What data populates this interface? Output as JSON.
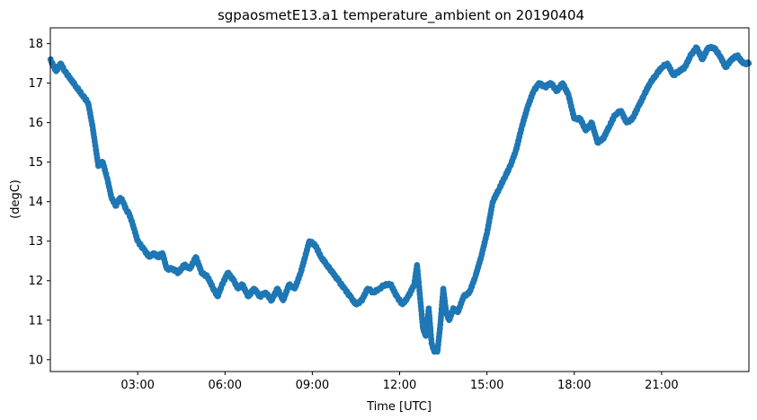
{
  "chart_data": {
    "type": "scatter",
    "title": "sgpaosmetE13.a1 temperature_ambient on 20190404",
    "xlabel": "Time [UTC]",
    "ylabel": "(degC)",
    "x_unit": "hours UTC",
    "xlim": [
      0,
      24
    ],
    "ylim": [
      9.7,
      18.4
    ],
    "xticks": [
      {
        "value": 3,
        "label": "03:00"
      },
      {
        "value": 6,
        "label": "06:00"
      },
      {
        "value": 9,
        "label": "09:00"
      },
      {
        "value": 12,
        "label": "12:00"
      },
      {
        "value": 15,
        "label": "15:00"
      },
      {
        "value": 18,
        "label": "18:00"
      },
      {
        "value": 21,
        "label": "21:00"
      }
    ],
    "yticks": [
      {
        "value": 10,
        "label": "10"
      },
      {
        "value": 11,
        "label": "11"
      },
      {
        "value": 12,
        "label": "12"
      },
      {
        "value": 13,
        "label": "13"
      },
      {
        "value": 14,
        "label": "14"
      },
      {
        "value": 15,
        "label": "15"
      },
      {
        "value": 16,
        "label": "16"
      },
      {
        "value": 17,
        "label": "17"
      },
      {
        "value": 18,
        "label": "18"
      }
    ],
    "grid": false,
    "marker_color": "#1f77b4",
    "series": [
      {
        "x": [
          0.0,
          0.2,
          0.35,
          0.5,
          0.7,
          0.9,
          1.1,
          1.3,
          1.45,
          1.55,
          1.65,
          1.8,
          1.95,
          2.1,
          2.25,
          2.4,
          2.5,
          2.6,
          2.7,
          2.8,
          3.0,
          3.2,
          3.4,
          3.55,
          3.7,
          3.85,
          4.0,
          4.2,
          4.4,
          4.6,
          4.8,
          5.0,
          5.2,
          5.4,
          5.6,
          5.75,
          5.9,
          6.1,
          6.3,
          6.45,
          6.6,
          6.8,
          7.0,
          7.2,
          7.4,
          7.6,
          7.8,
          8.0,
          8.2,
          8.4,
          8.6,
          8.75,
          8.9,
          9.1,
          9.3,
          9.5,
          9.7,
          9.9,
          10.1,
          10.3,
          10.5,
          10.7,
          10.9,
          11.1,
          11.3,
          11.5,
          11.7,
          11.9,
          12.1,
          12.3,
          12.5,
          12.6,
          12.7,
          12.8,
          12.9,
          13.0,
          13.1,
          13.2,
          13.3,
          13.4,
          13.5,
          13.6,
          13.7,
          13.85,
          14.0,
          14.2,
          14.4,
          14.6,
          14.8,
          15.0,
          15.2,
          15.4,
          15.6,
          15.8,
          16.0,
          16.2,
          16.4,
          16.6,
          16.8,
          17.0,
          17.2,
          17.4,
          17.6,
          17.8,
          18.0,
          18.2,
          18.4,
          18.6,
          18.8,
          19.0,
          19.2,
          19.4,
          19.6,
          19.8,
          20.0,
          20.2,
          20.4,
          20.6,
          20.8,
          21.0,
          21.2,
          21.4,
          21.6,
          21.8,
          22.0,
          22.2,
          22.4,
          22.6,
          22.8,
          23.0,
          23.2,
          23.4,
          23.6,
          23.8,
          24.0
        ],
        "y": [
          17.6,
          17.3,
          17.5,
          17.3,
          17.1,
          16.9,
          16.7,
          16.5,
          15.9,
          15.4,
          14.9,
          15.0,
          14.6,
          14.1,
          13.9,
          14.1,
          14.0,
          13.8,
          13.7,
          13.5,
          13.0,
          12.8,
          12.6,
          12.7,
          12.6,
          12.7,
          12.3,
          12.3,
          12.2,
          12.4,
          12.3,
          12.6,
          12.2,
          12.1,
          11.8,
          11.6,
          11.9,
          12.2,
          12.0,
          11.8,
          11.9,
          11.6,
          11.8,
          11.6,
          11.7,
          11.5,
          11.8,
          11.5,
          11.9,
          11.8,
          12.2,
          12.6,
          13.0,
          12.9,
          12.6,
          12.4,
          12.2,
          12.0,
          11.8,
          11.6,
          11.4,
          11.5,
          11.8,
          11.7,
          11.8,
          11.9,
          11.9,
          11.6,
          11.4,
          11.6,
          11.9,
          12.4,
          11.6,
          10.8,
          10.6,
          11.3,
          10.4,
          10.2,
          10.2,
          10.9,
          11.8,
          11.2,
          11.0,
          11.3,
          11.2,
          11.6,
          11.7,
          12.1,
          12.6,
          13.2,
          14.0,
          14.3,
          14.6,
          14.9,
          15.3,
          15.9,
          16.4,
          16.8,
          17.0,
          16.9,
          17.0,
          16.8,
          17.0,
          16.7,
          16.1,
          16.1,
          15.8,
          16.0,
          15.5,
          15.6,
          15.9,
          16.2,
          16.3,
          16.0,
          16.1,
          16.4,
          16.7,
          17.0,
          17.2,
          17.4,
          17.5,
          17.2,
          17.3,
          17.4,
          17.7,
          17.9,
          17.6,
          17.9,
          17.9,
          17.7,
          17.4,
          17.6,
          17.7,
          17.5,
          17.5
        ]
      }
    ]
  }
}
